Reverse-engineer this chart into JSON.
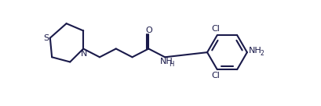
{
  "line_color": "#1a1a4a",
  "line_width": 1.5,
  "bg": "#ffffff",
  "fs": 8.0,
  "fs_sub": 5.5,
  "figsize": [
    4.1,
    1.36
  ],
  "dpi": 100,
  "xlim": [
    0,
    410
  ],
  "ylim": [
    0,
    136
  ]
}
